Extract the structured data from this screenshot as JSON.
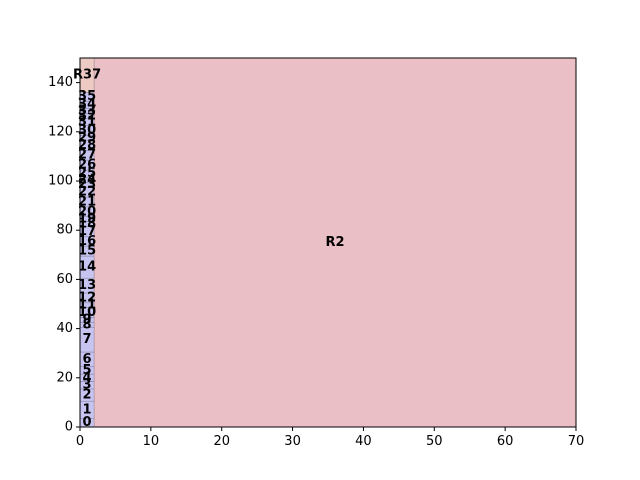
{
  "chart_data": {
    "type": "treemap",
    "title": "",
    "xlabel": "",
    "ylabel": "",
    "xlim": [
      0,
      70
    ],
    "ylim": [
      0,
      150
    ],
    "x_ticks": [
      0,
      10,
      20,
      30,
      40,
      50,
      60,
      70
    ],
    "y_ticks": [
      0,
      20,
      40,
      60,
      80,
      100,
      120,
      140
    ],
    "grid": false,
    "colors": {
      "small_cells": "#c8c4f2",
      "large_cell": "#ebbfc6",
      "top_cell": "#edcbc4",
      "edge": "#000000"
    },
    "rectangles": [
      {
        "label": "0",
        "x0": 0,
        "y0": 0,
        "x1": 2,
        "y1": 3.5,
        "fill": "small"
      },
      {
        "label": "1",
        "x0": 0,
        "y0": 3.5,
        "x1": 2,
        "y1": 10.5,
        "fill": "small"
      },
      {
        "label": "2",
        "x0": 0,
        "y0": 10.5,
        "x1": 2,
        "y1": 15.5,
        "fill": "small"
      },
      {
        "label": "3",
        "x0": 0,
        "y0": 15.5,
        "x1": 2,
        "y1": 18.5,
        "fill": "small"
      },
      {
        "label": "4",
        "x0": 0,
        "y0": 18.5,
        "x1": 2,
        "y1": 21.5,
        "fill": "small"
      },
      {
        "label": "5",
        "x0": 0,
        "y0": 21.5,
        "x1": 2,
        "y1": 24.5,
        "fill": "small"
      },
      {
        "label": "6",
        "x0": 0,
        "y0": 24.5,
        "x1": 2,
        "y1": 30.5,
        "fill": "small"
      },
      {
        "label": "7",
        "x0": 0,
        "y0": 30.5,
        "x1": 2,
        "y1": 40.5,
        "fill": "small"
      },
      {
        "label": "8",
        "x0": 0,
        "y0": 40.5,
        "x1": 2,
        "y1": 42.5,
        "fill": "small"
      },
      {
        "label": "9",
        "x0": 0,
        "y0": 42.5,
        "x1": 2,
        "y1": 44.5,
        "fill": "small"
      },
      {
        "label": "10",
        "x0": 0,
        "y0": 44.5,
        "x1": 2,
        "y1": 48.5,
        "fill": "small"
      },
      {
        "label": "11",
        "x0": 0,
        "y0": 48.5,
        "x1": 2,
        "y1": 50.5,
        "fill": "small"
      },
      {
        "label": "12",
        "x0": 0,
        "y0": 50.5,
        "x1": 2,
        "y1": 54.5,
        "fill": "small"
      },
      {
        "label": "13",
        "x0": 0,
        "y0": 54.5,
        "x1": 2,
        "y1": 60.5,
        "fill": "small"
      },
      {
        "label": "14",
        "x0": 0,
        "y0": 60.5,
        "x1": 2,
        "y1": 69.5,
        "fill": "small"
      },
      {
        "label": "15",
        "x0": 0,
        "y0": 69.5,
        "x1": 2,
        "y1": 73.5,
        "fill": "small"
      },
      {
        "label": "16",
        "x0": 0,
        "y0": 73.5,
        "x1": 2,
        "y1": 77.5,
        "fill": "small"
      },
      {
        "label": "17",
        "x0": 0,
        "y0": 77.5,
        "x1": 2,
        "y1": 81.5,
        "fill": "small"
      },
      {
        "label": "18",
        "x0": 0,
        "y0": 81.5,
        "x1": 2,
        "y1": 83.5,
        "fill": "small"
      },
      {
        "label": "19",
        "x0": 0,
        "y0": 83.5,
        "x1": 2,
        "y1": 85.5,
        "fill": "small"
      },
      {
        "label": "20",
        "x0": 0,
        "y0": 85.5,
        "x1": 2,
        "y1": 89.5,
        "fill": "small"
      },
      {
        "label": "21",
        "x0": 0,
        "y0": 89.5,
        "x1": 2,
        "y1": 93.5,
        "fill": "small"
      },
      {
        "label": "22",
        "x0": 0,
        "y0": 93.5,
        "x1": 2,
        "y1": 97.5,
        "fill": "small"
      },
      {
        "label": "23",
        "x0": 0,
        "y0": 97.5,
        "x1": 2,
        "y1": 99.5,
        "fill": "small"
      },
      {
        "label": "24",
        "x0": 0,
        "y0": 99.5,
        "x1": 2,
        "y1": 101.5,
        "fill": "small"
      },
      {
        "label": "25",
        "x0": 0,
        "y0": 101.5,
        "x1": 2,
        "y1": 104.5,
        "fill": "small"
      },
      {
        "label": "26",
        "x0": 0,
        "y0": 104.5,
        "x1": 2,
        "y1": 108.5,
        "fill": "small"
      },
      {
        "label": "27",
        "x0": 0,
        "y0": 108.5,
        "x1": 2,
        "y1": 112.5,
        "fill": "small"
      },
      {
        "label": "28",
        "x0": 0,
        "y0": 112.5,
        "x1": 2,
        "y1": 116.5,
        "fill": "small"
      },
      {
        "label": "29",
        "x0": 0,
        "y0": 116.5,
        "x1": 2,
        "y1": 118.5,
        "fill": "small"
      },
      {
        "label": "30",
        "x0": 0,
        "y0": 118.5,
        "x1": 2,
        "y1": 122.5,
        "fill": "small"
      },
      {
        "label": "31",
        "x0": 0,
        "y0": 122.5,
        "x1": 2,
        "y1": 125.5,
        "fill": "small"
      },
      {
        "label": "32",
        "x0": 0,
        "y0": 125.5,
        "x1": 2,
        "y1": 127.5,
        "fill": "small"
      },
      {
        "label": "33",
        "x0": 0,
        "y0": 127.5,
        "x1": 2,
        "y1": 129.5,
        "fill": "small"
      },
      {
        "label": "34",
        "x0": 0,
        "y0": 129.5,
        "x1": 2,
        "y1": 132.5,
        "fill": "small"
      },
      {
        "label": "35",
        "x0": 0,
        "y0": 132.5,
        "x1": 2,
        "y1": 136,
        "fill": "small"
      },
      {
        "label": "R37",
        "x0": 0,
        "y0": 136,
        "x1": 2,
        "y1": 150,
        "fill": "top"
      },
      {
        "label": "R2",
        "x0": 2,
        "y0": 0,
        "x1": 70,
        "y1": 150,
        "fill": "large"
      }
    ]
  }
}
